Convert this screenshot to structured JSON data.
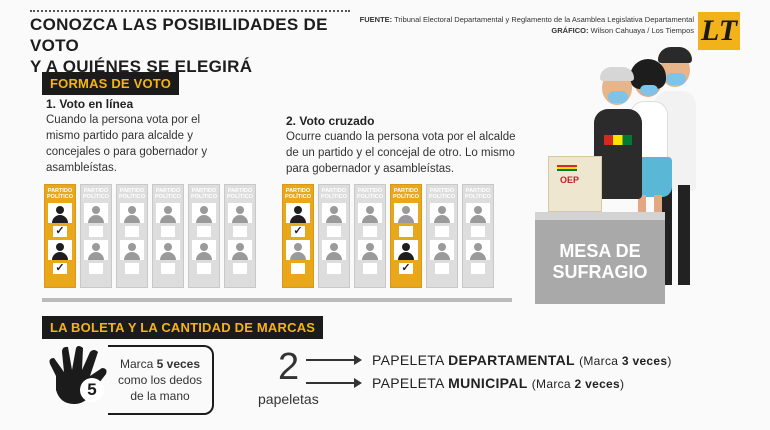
{
  "header": {
    "title_line1": "CONOZCA LAS POSIBILIDADES DE VOTO",
    "title_line2": "Y A QUIÉNES SE ELEGIRÁ",
    "source_label": "FUENTE:",
    "source_text": "Tribunal Electoral Departamental y Reglamento de la Asamblea Legislativa Departamental",
    "graphic_label": "GRÁFICO:",
    "graphic_text": "Wilson Cahuaya / Los Tiempos",
    "logo": "LT"
  },
  "formas": {
    "label": "FORMAS DE VOTO",
    "online_title": "1. Voto en línea",
    "online_desc": "Cuando la persona vota por el mismo partido para alcalde y concejales o para gobernador y asambleístas.",
    "cross_title": "2. Voto cruzado",
    "cross_desc": "Ocurre cuando la persona vota por el alcalde de un partido y el concejal de otro. Lo mismo para gobernador y asambleístas.",
    "ballot_header": "PARTIDO POLÍTICO",
    "check": "✓"
  },
  "scene": {
    "mesa_line1": "MESA DE",
    "mesa_line2": "SUFRAGIO",
    "urn_label": "OEP"
  },
  "boleta": {
    "label": "LA BOLETA Y LA CANTIDAD DE MARCAS",
    "hand_number": "5",
    "mark_pre": "Marca ",
    "mark_bold": "5 veces",
    "mark_line2": "como los dedos",
    "mark_line3": "de la mano",
    "count": "2",
    "count_label": "papeletas",
    "dep_pre": "PAPELETA ",
    "dep_bold": "DEPARTAMENTAL",
    "dep_paren_pre": "(Marca ",
    "dep_paren_bold": "3 veces",
    "dep_paren_post": ")",
    "mun_pre": "PAPELETA ",
    "mun_bold": "MUNICIPAL",
    "mun_paren_pre": "(Marca ",
    "mun_paren_bold": "2 veces",
    "mun_paren_post": ")"
  },
  "colors": {
    "accent": "#f5b416",
    "dark": "#1b1b1b",
    "ballot_gray": "#dddddd",
    "ballot_orange": "#e9a71c"
  }
}
